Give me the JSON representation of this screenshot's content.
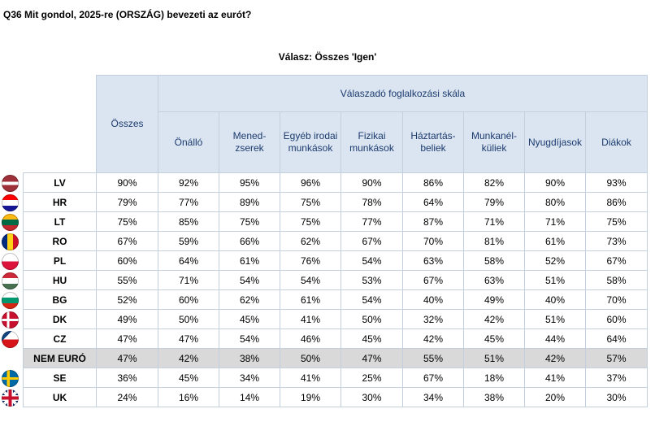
{
  "question": "Q36 Mit gondol, 2025-re (ORSZÁG) bevezeti az eurót?",
  "answer_label": "Válasz: Összes 'Igen'",
  "header": {
    "total": "Összes",
    "group": "Válaszadó foglalkozási skála",
    "columns": [
      [
        "Önálló"
      ],
      [
        "Mened-",
        "zserek"
      ],
      [
        "Egyéb irodai",
        "munkások"
      ],
      [
        "Fizikai",
        "munkások"
      ],
      [
        "Háztartás-",
        "beliek"
      ],
      [
        "Munkanél-",
        "küliek"
      ],
      [
        "Nyugdíjasok"
      ],
      [
        "Diákok"
      ]
    ]
  },
  "rows": [
    {
      "label": "LV",
      "flag": "latvia-flag-icon",
      "values": [
        "90%",
        "92%",
        "95%",
        "96%",
        "90%",
        "86%",
        "82%",
        "90%",
        "93%"
      ]
    },
    {
      "label": "HR",
      "flag": "croatia-flag-icon",
      "values": [
        "79%",
        "77%",
        "89%",
        "75%",
        "78%",
        "64%",
        "79%",
        "80%",
        "86%"
      ]
    },
    {
      "label": "LT",
      "flag": "lithuania-flag-icon",
      "values": [
        "75%",
        "85%",
        "75%",
        "75%",
        "77%",
        "87%",
        "71%",
        "71%",
        "75%"
      ]
    },
    {
      "label": "RO",
      "flag": "romania-flag-icon",
      "values": [
        "67%",
        "59%",
        "66%",
        "62%",
        "67%",
        "70%",
        "81%",
        "61%",
        "73%"
      ]
    },
    {
      "label": "PL",
      "flag": "poland-flag-icon",
      "values": [
        "60%",
        "64%",
        "61%",
        "76%",
        "54%",
        "63%",
        "58%",
        "52%",
        "67%"
      ]
    },
    {
      "label": "HU",
      "flag": "hungary-flag-icon",
      "values": [
        "55%",
        "71%",
        "54%",
        "54%",
        "53%",
        "67%",
        "63%",
        "51%",
        "58%"
      ]
    },
    {
      "label": "BG",
      "flag": "bulgaria-flag-icon",
      "values": [
        "52%",
        "60%",
        "62%",
        "61%",
        "54%",
        "40%",
        "49%",
        "40%",
        "70%"
      ]
    },
    {
      "label": "DK",
      "flag": "denmark-flag-icon",
      "values": [
        "49%",
        "50%",
        "45%",
        "41%",
        "50%",
        "32%",
        "42%",
        "51%",
        "60%"
      ]
    },
    {
      "label": "CZ",
      "flag": "czechia-flag-icon",
      "values": [
        "47%",
        "47%",
        "54%",
        "46%",
        "45%",
        "42%",
        "45%",
        "44%",
        "64%"
      ]
    },
    {
      "label": "NEM EURÓ",
      "flag": "",
      "values": [
        "47%",
        "42%",
        "38%",
        "50%",
        "47%",
        "55%",
        "51%",
        "42%",
        "57%"
      ]
    },
    {
      "label": "SE",
      "flag": "sweden-flag-icon",
      "values": [
        "36%",
        "45%",
        "34%",
        "41%",
        "25%",
        "67%",
        "18%",
        "41%",
        "37%"
      ]
    },
    {
      "label": "UK",
      "flag": "uk-flag-icon",
      "values": [
        "24%",
        "16%",
        "14%",
        "19%",
        "30%",
        "34%",
        "38%",
        "20%",
        "30%"
      ]
    }
  ]
}
